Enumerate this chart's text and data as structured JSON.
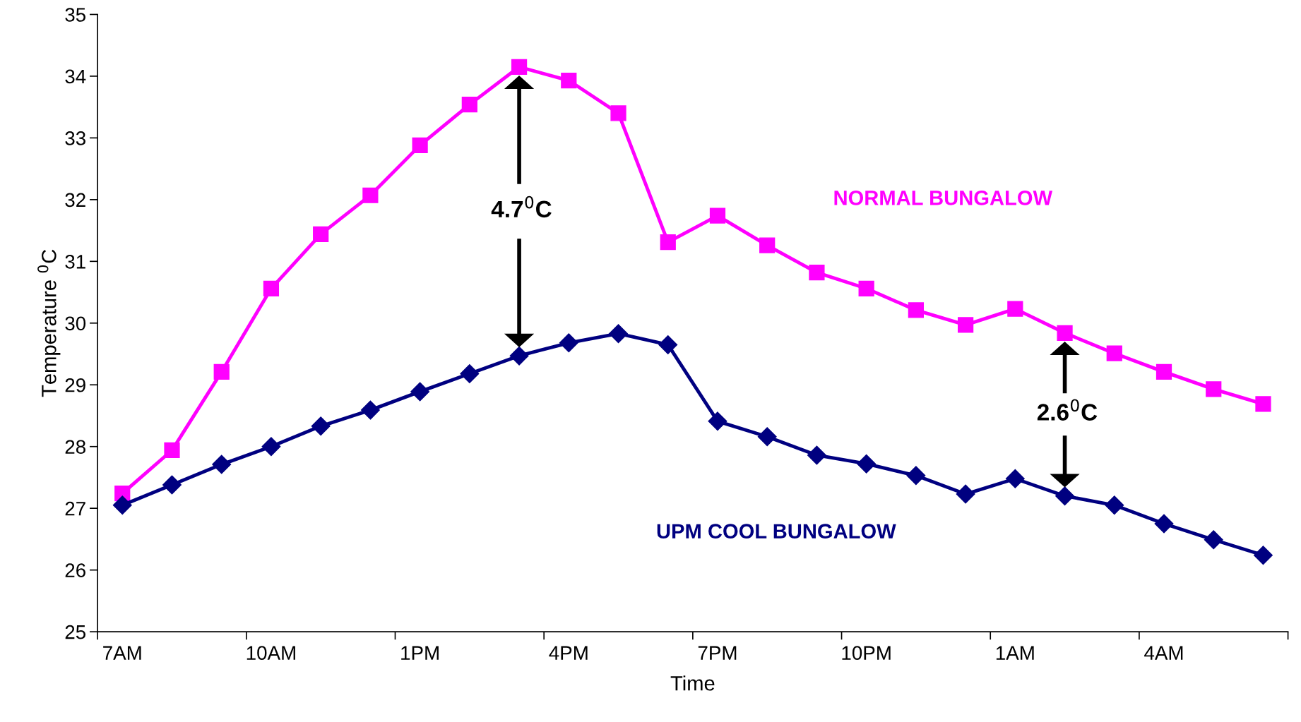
{
  "chart_data": {
    "type": "line",
    "xlabel": "Time",
    "ylabel": "Temperature $^{0}$C",
    "categories": [
      "7AM",
      null,
      null,
      "10AM",
      null,
      null,
      "1PM",
      null,
      null,
      "4PM",
      null,
      null,
      "7PM",
      null,
      null,
      "10PM",
      null,
      null,
      "1AM",
      null,
      null,
      "4AM",
      null,
      null
    ],
    "series": [
      {
        "name": "NORMAL BUNGALOW",
        "color": "#ff00ff",
        "marker": "square",
        "values": [
          27.24,
          27.94,
          29.21,
          30.56,
          31.44,
          32.07,
          32.88,
          33.54,
          34.15,
          33.93,
          33.4,
          31.31,
          31.74,
          31.26,
          30.82,
          30.56,
          30.21,
          29.97,
          30.23,
          29.84,
          29.51,
          29.21,
          28.93,
          28.69
        ]
      },
      {
        "name": "UPM COOL BUNGALOW",
        "color": "#000080",
        "marker": "diamond",
        "values": [
          27.05,
          27.38,
          27.71,
          28.0,
          28.33,
          28.59,
          28.89,
          29.18,
          29.47,
          29.68,
          29.83,
          29.65,
          28.41,
          28.16,
          27.86,
          27.72,
          27.53,
          27.23,
          27.48,
          27.2,
          27.05,
          26.75,
          26.49,
          26.24
        ]
      }
    ],
    "annotations": [
      "4.7$^{0}$C",
      "2.6$^{0}$C"
    ],
    "ylim": [
      25,
      35
    ],
    "yticks": [
      25,
      26,
      27,
      28,
      29,
      30,
      31,
      32,
      33,
      34,
      35
    ],
    "grid": false,
    "legend": false,
    "line_style": "solid"
  }
}
